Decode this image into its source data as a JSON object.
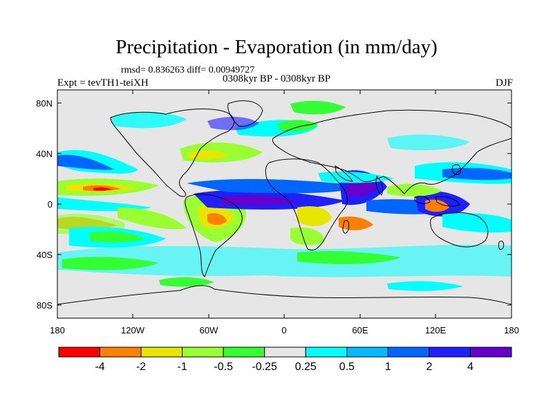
{
  "header": {
    "title": "Precipitation - Evaporation (in mm/day)",
    "stats": "rmsd= 0.836263 diff= 0.00949727",
    "experiment": "Expt = tevTH1-teiXH",
    "period": "0308kyr BP - 0308kyr BP",
    "season": "DJF"
  },
  "axes": {
    "lat_labels": [
      "80N",
      "40N",
      "0",
      "40S",
      "80S"
    ],
    "lon_labels": [
      "180",
      "120W",
      "60W",
      "0",
      "60E",
      "120E",
      "180"
    ]
  },
  "colorbar": {
    "colors": [
      "#ff0000",
      "#ff8000",
      "#e6e600",
      "#99ff33",
      "#33ff33",
      "#e6e6e6",
      "#00ffff",
      "#00bbff",
      "#0066ff",
      "#1f1fff",
      "#6600cc"
    ],
    "labels": [
      "-4",
      "-2",
      "-1",
      "-0.5",
      "-0.25",
      "0.25",
      "0.5",
      "1",
      "2",
      "4"
    ]
  },
  "palette": {
    "background": "#e6e6e6",
    "land_outline": "#000000"
  }
}
